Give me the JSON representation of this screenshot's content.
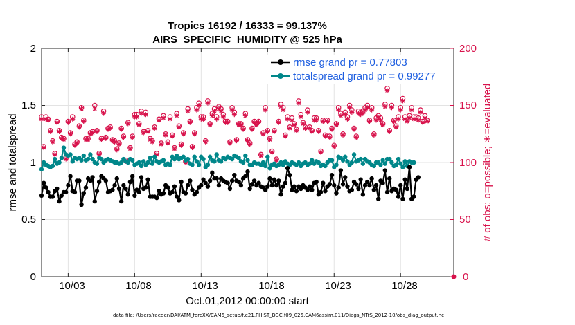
{
  "chart_data": {
    "type": "line",
    "title": "Tropics 16192 / 16333 = 99.137%",
    "subtitle": "AIRS_SPECIFIC_HUMIDITY @ 525 hPa",
    "xlabel": "Oct.01,2012 00:00:00 start",
    "ylabel_left": "rmse and totalspread",
    "ylabel_right": "# of obs: o=possible; ∗=evaluated",
    "footnote": "data file: /Users/raeder/DAI/ATM_forcXX/CAM6_setup/f.e21.FHIST_BGC.f09_025.CAM6assim.011/Diags_NTrS_2012-10/obs_diag_output.nc",
    "ylim_left": [
      0,
      2
    ],
    "ylim_right": [
      0,
      200
    ],
    "yticks_left": [
      "0",
      "0.5",
      "1",
      "1.5",
      "2"
    ],
    "yticks_right": [
      "0",
      "50",
      "100",
      "150",
      "200"
    ],
    "xlim_days": [
      1,
      32
    ],
    "x_tick_labels": [
      "10/03",
      "10/08",
      "10/13",
      "10/18",
      "10/23",
      "10/28"
    ],
    "grid": true,
    "legend_position": "top-right",
    "colors": {
      "rmse": "#000000",
      "spread": "#00878a",
      "obs": "#d8134c",
      "right_axis": "#d8134c",
      "legend_text": "#1f5fe0"
    },
    "series": [
      {
        "name": "rmse grand pr = 0.77803",
        "axis": "left",
        "x_step_hours": 4,
        "x_start": "Oct.01,2012 00:00",
        "values": [
          0.71,
          0.82,
          0.78,
          0.74,
          0.7,
          0.7,
          0.75,
          0.77,
          0.66,
          0.71,
          0.74,
          0.74,
          0.8,
          0.88,
          0.75,
          0.74,
          0.84,
          0.84,
          0.63,
          0.73,
          0.78,
          0.86,
          0.84,
          0.87,
          0.66,
          0.75,
          0.83,
          0.88,
          0.86,
          0.84,
          0.74,
          0.75,
          0.76,
          0.8,
          0.86,
          0.77,
          0.66,
          0.8,
          0.77,
          0.72,
          0.83,
          0.88,
          0.71,
          0.76,
          0.74,
          0.87,
          0.77,
          0.78,
          0.85,
          0.7,
          0.7,
          0.7,
          0.69,
          0.75,
          0.72,
          0.73,
          0.8,
          0.78,
          0.73,
          0.74,
          0.79,
          0.7,
          0.67,
          0.83,
          0.74,
          0.73,
          0.8,
          0.84,
          0.76,
          0.72,
          0.74,
          0.78,
          0.8,
          0.85,
          0.82,
          0.79,
          0.84,
          0.91,
          0.86,
          0.86,
          0.8,
          0.86,
          0.84,
          0.83,
          0.82,
          0.77,
          0.84,
          0.89,
          0.84,
          0.83,
          0.8,
          0.86,
          0.88,
          0.92,
          0.77,
          0.81,
          0.84,
          0.8,
          0.82,
          0.79,
          0.78,
          0.76,
          0.79,
          0.86,
          0.8,
          0.85,
          0.8,
          0.84,
          0.72,
          0.79,
          0.82,
          0.95,
          0.89,
          0.76,
          0.79,
          0.75,
          0.79,
          0.77,
          0.8,
          0.78,
          0.76,
          0.79,
          0.76,
          0.82,
          0.83,
          0.72,
          0.74,
          0.82,
          0.75,
          0.79,
          0.81,
          0.89,
          0.8,
          0.73,
          0.78,
          0.93,
          0.81,
          0.87,
          0.79,
          0.75,
          0.76,
          0.83,
          0.81,
          0.77,
          0.85,
          0.72,
          0.8,
          0.83,
          0.8,
          0.86,
          0.76,
          0.8,
          0.68,
          0.84,
          0.82,
          0.93,
          0.74,
          0.86,
          0.75,
          0.77,
          0.76,
          0.7,
          0.8,
          0.68,
          0.85,
          0.77,
          0.96,
          0.68,
          0.7,
          0.85,
          0.87
        ]
      },
      {
        "name": "totalspread grand pr = 0.99277",
        "axis": "left",
        "x_step_hours": 4,
        "x_start": "Oct.01,2012 00:00",
        "values": [
          0.94,
          1.0,
          0.98,
          0.97,
          0.96,
          0.97,
          1.03,
          0.99,
          1.0,
          1.04,
          1.13,
          1.07,
          1.06,
          1.07,
          1.01,
          1.04,
          1.03,
          1.04,
          1.02,
          1.06,
          1.02,
          1.03,
          1.07,
          1.03,
          1.0,
          0.99,
          1.04,
          1.03,
          1.0,
          1.02,
          1.03,
          1.02,
          1.01,
          1.0,
          1.0,
          0.99,
          1.0,
          1.03,
          1.01,
          1.0,
          1.03,
          1.02,
          0.98,
          0.99,
          1.0,
          0.97,
          1.01,
          0.98,
          1.0,
          1.04,
          0.99,
          1.05,
          1.01,
          1.0,
          1.01,
          1.02,
          0.98,
          0.99,
          0.98,
          1.05,
          1.03,
          1.06,
          1.03,
          1.04,
          1.05,
          1.02,
          1.03,
          0.99,
          0.98,
          1.05,
          1.01,
          0.98,
          1.05,
          1.03,
          0.96,
          0.98,
          1.05,
          1.02,
          1.01,
          1.07,
          1.02,
          1.01,
          1.04,
          1.03,
          1.05,
          1.04,
          1.03,
          1.06,
          1.05,
          1.04,
          1.01,
          1.0,
          1.06,
          1.02,
          0.98,
          0.98,
          1.0,
          0.99,
          0.99,
          0.98,
          1.0,
          0.97,
          1.05,
          0.95,
          0.98,
          0.99,
          0.97,
          0.98,
          1.0,
          0.98,
          1.01,
          0.99,
          0.98,
          1.0,
          0.99,
          0.98,
          1.0,
          0.97,
          0.99,
          1.0,
          0.98,
          0.99,
          1.02,
          0.99,
          1.01,
          1.0,
          0.97,
          0.98,
          0.97,
          1.0,
          1.02,
          1.02,
          0.96,
          0.98,
          1.05,
          1.04,
          1.02,
          1.05,
          1.01,
          0.98,
          1.0,
          1.07,
          1.01,
          1.02,
          1.03,
          0.99,
          1.03,
          1.01,
          1.0,
          0.98,
          0.97,
          1.0,
          1.0,
          0.98,
          1.02,
          0.99,
          1.03,
          1.03,
          1.0,
          0.97,
          0.98,
          1.03,
          0.99,
          0.96,
          1.01,
          0.97,
          1.01,
          1.0,
          1.0
        ]
      },
      {
        "name": "# of obs possible",
        "axis": "right",
        "marker": "o",
        "x_step_hours": 4,
        "x_start": "Oct.01,2012 00:00",
        "values": [
          140,
          114,
          140,
          138,
          128,
          119,
          108,
          136,
          128,
          122,
          121,
          104,
          136,
          126,
          140,
          116,
          118,
          132,
          148,
          137,
          121,
          121,
          126,
          127,
          150,
          128,
          108,
          121,
          145,
          122,
          130,
          131,
          120,
          119,
          112,
          117,
          130,
          123,
          102,
          135,
          113,
          123,
          142,
          142,
          134,
          145,
          127,
          144,
          128,
          121,
          119,
          131,
          108,
          138,
          117,
          141,
          125,
          118,
          140,
          124,
          113,
          143,
          132,
          116,
          126,
          101,
          147,
          136,
          114,
          126,
          148,
          152,
          140,
          140,
          119,
          154,
          134,
          143,
          147,
          140,
          149,
          147,
          142,
          136,
          136,
          118,
          148,
          144,
          120,
          134,
          134,
          130,
          143,
          120,
          117,
          130,
          136,
          134,
          136,
          107,
          126,
          148,
          128,
          121,
          110,
          128,
          103,
          136,
          151,
          148,
          124,
          140,
          131,
          139,
          134,
          129,
          154,
          142,
          135,
          131,
          146,
          131,
          128,
          139,
          139,
          128,
          110,
          137,
          124,
          137,
          123,
          130,
          115,
          134,
          148,
          143,
          125,
          144,
          140,
          150,
          146,
          130,
          123,
          145,
          144,
          145,
          148,
          150,
          137,
          148,
          125,
          139,
          141,
          139,
          134,
          151,
          165,
          128,
          150,
          137,
          132,
          140,
          148,
          156,
          140,
          137,
          141,
          148,
          140,
          140,
          139,
          146,
          136,
          141,
          137
        ]
      },
      {
        "name": "# of obs evaluated",
        "axis": "right",
        "marker": "*",
        "x_step_hours": 4,
        "x_start": "Oct.01,2012 00:00",
        "values": [
          138,
          113,
          138,
          137,
          127,
          118,
          107,
          135,
          127,
          121,
          120,
          103,
          135,
          125,
          138,
          115,
          117,
          131,
          147,
          136,
          120,
          120,
          125,
          126,
          147,
          127,
          107,
          120,
          143,
          121,
          129,
          130,
          119,
          118,
          111,
          116,
          129,
          122,
          101,
          134,
          112,
          122,
          140,
          140,
          133,
          143,
          126,
          142,
          127,
          120,
          118,
          130,
          107,
          137,
          116,
          139,
          124,
          117,
          138,
          123,
          112,
          141,
          131,
          115,
          125,
          100,
          145,
          135,
          113,
          125,
          146,
          150,
          138,
          138,
          118,
          152,
          133,
          141,
          145,
          138,
          147,
          145,
          140,
          135,
          135,
          117,
          146,
          142,
          119,
          133,
          133,
          129,
          141,
          119,
          116,
          129,
          135,
          133,
          135,
          106,
          125,
          146,
          127,
          120,
          109,
          127,
          102,
          135,
          149,
          146,
          123,
          138,
          130,
          137,
          133,
          128,
          152,
          140,
          134,
          130,
          144,
          130,
          127,
          137,
          137,
          127,
          109,
          136,
          123,
          136,
          122,
          129,
          114,
          133,
          146,
          141,
          124,
          142,
          138,
          148,
          144,
          129,
          122,
          143,
          142,
          143,
          146,
          148,
          136,
          146,
          124,
          137,
          139,
          137,
          133,
          149,
          163,
          127,
          148,
          136,
          131,
          138,
          146,
          154,
          138,
          136,
          139,
          146,
          138,
          138,
          137,
          144,
          135,
          139,
          136
        ]
      }
    ]
  }
}
